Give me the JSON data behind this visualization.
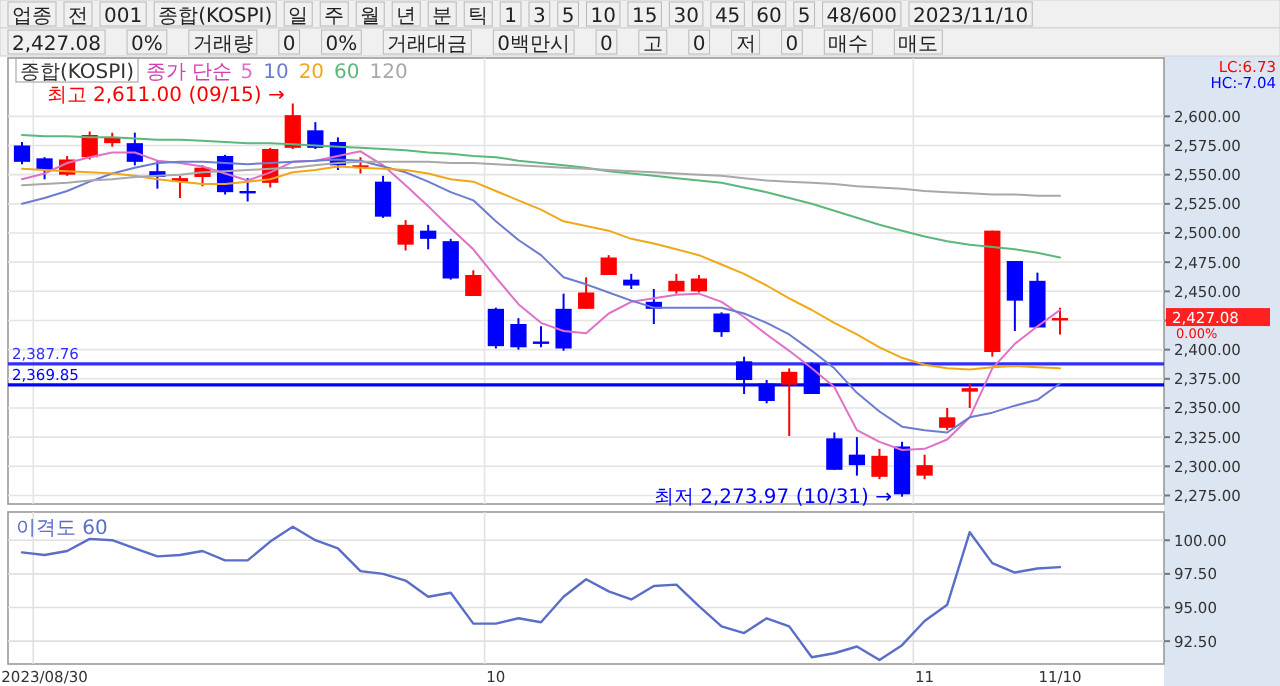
{
  "chart_data": [
    {
      "type": "other",
      "annotations": [
        "업종",
        "전",
        "001",
        "종합(KOSPI)",
        "일",
        "주",
        "월",
        "년",
        "분",
        "틱",
        "1",
        "3",
        "5",
        "10",
        "15",
        "30",
        "45",
        "60",
        "5",
        "48/600",
        "2023/11/10"
      ]
    },
    {
      "type": "other",
      "annotations": [
        "2,427.08",
        "0%",
        "거래량",
        "0",
        "0%",
        "거래대금",
        "0백만시",
        "0",
        "고",
        "0",
        "저",
        "0",
        "매수",
        "매도"
      ]
    },
    {
      "type": "candlestick",
      "title": "종합(KOSPI)",
      "legend_title": "종가 단순",
      "legend": "top left",
      "grid": true,
      "categories": [
        null,
        null,
        null,
        null,
        null,
        null,
        null,
        null,
        null,
        null,
        null,
        null,
        null,
        null,
        null,
        null,
        null,
        null,
        null,
        null,
        null,
        null,
        null,
        null,
        null,
        null,
        null,
        null,
        null,
        null,
        null,
        null,
        null,
        null,
        null,
        null,
        null,
        null,
        null,
        null,
        null,
        null,
        null,
        null,
        null,
        null,
        null
      ],
      "ohlc": [
        [
          2575,
          2578,
          2559,
          2561
        ],
        [
          2564,
          2565,
          2546,
          2554
        ],
        [
          2550,
          2566,
          2549,
          2563
        ],
        [
          2565,
          2587,
          2563,
          2584
        ],
        [
          2577,
          2586,
          2574,
          2582
        ],
        [
          2577,
          2586,
          2558,
          2561
        ],
        [
          2553,
          2562,
          2538,
          2548
        ],
        [
          2544,
          2549,
          2530,
          2547
        ],
        [
          2548,
          2558,
          2540,
          2556
        ],
        [
          2566,
          2567,
          2533,
          2535
        ],
        [
          2536,
          2547,
          2527,
          2535
        ],
        [
          2543,
          2573,
          2539,
          2572
        ],
        [
          2573,
          2611,
          2572,
          2601
        ],
        [
          2588,
          2595,
          2572,
          2573
        ],
        [
          2578,
          2582,
          2554,
          2558
        ],
        [
          2556,
          2565,
          2551,
          2558
        ],
        [
          2544,
          2549,
          2513,
          2514
        ],
        [
          2490,
          2511,
          2485,
          2507
        ],
        [
          2502,
          2507,
          2486,
          2495
        ],
        [
          2493,
          2495,
          2460,
          2461
        ],
        [
          2446,
          2468,
          2446,
          2464
        ],
        [
          2435,
          2436,
          2401,
          2403
        ],
        [
          2422,
          2427,
          2400,
          2402
        ],
        [
          2407,
          2420,
          2402,
          2406
        ],
        [
          2435,
          2448,
          2399,
          2401
        ],
        [
          2435,
          2462,
          2435,
          2449
        ],
        [
          2464,
          2481,
          2464,
          2479
        ],
        [
          2460,
          2465,
          2452,
          2455
        ],
        [
          2441,
          2452,
          2422,
          2435
        ],
        [
          2450,
          2465,
          2448,
          2459
        ],
        [
          2450,
          2464,
          2449,
          2461
        ],
        [
          2431,
          2432,
          2411,
          2415
        ],
        [
          2390,
          2394,
          2362,
          2374
        ],
        [
          2371,
          2374,
          2354,
          2356
        ],
        [
          2370,
          2384,
          2326,
          2381
        ],
        [
          2388,
          2389,
          2362,
          2362
        ],
        [
          2324,
          2329,
          2297,
          2297
        ],
        [
          2310,
          2325,
          2292,
          2301
        ],
        [
          2291,
          2315,
          2289,
          2309
        ],
        [
          2317,
          2321,
          2273.97,
          2276
        ],
        [
          2292,
          2310,
          2289,
          2301
        ],
        [
          2333,
          2350,
          2331,
          2342
        ],
        [
          2364,
          2371,
          2350,
          2367
        ],
        [
          2398,
          2502,
          2394,
          2502
        ],
        [
          2476,
          2476,
          2416,
          2442
        ],
        [
          2459,
          2466,
          2419,
          2419
        ],
        [
          2426,
          2436,
          2413,
          2427.08
        ]
      ],
      "series": [
        {
          "name": "5",
          "type": "line",
          "color": "#e070c8",
          "values": [
            2546,
            2551,
            2560,
            2565,
            2569,
            2569,
            2562,
            2560,
            2557,
            2551,
            2545,
            2552,
            2561,
            2562,
            2566,
            2570,
            2558,
            2541,
            2523,
            2504,
            2486,
            2462,
            2439,
            2423,
            2416,
            2414,
            2431,
            2441,
            2444,
            2447,
            2448,
            2441,
            2428,
            2413,
            2399,
            2384,
            2368,
            2331,
            2321,
            2314,
            2315,
            2323,
            2342,
            2384,
            2405,
            2420,
            2434
          ]
        },
        {
          "name": "10",
          "type": "line",
          "color": "#6c7cd0",
          "values": [
            2525,
            2530,
            2536,
            2544,
            2551,
            2556,
            2560,
            2561,
            2561,
            2560,
            2559,
            2560,
            2561,
            2562,
            2563,
            2562,
            2557,
            2552,
            2544,
            2535,
            2528,
            2510,
            2494,
            2481,
            2462,
            2456,
            2449,
            2442,
            2436,
            2436,
            2436,
            2436,
            2431,
            2423,
            2413,
            2399,
            2384,
            2363,
            2347,
            2334,
            2331,
            2329,
            2342,
            2346,
            2352,
            2357,
            2371
          ]
        },
        {
          "name": "20",
          "type": "line",
          "color": "#f0a818",
          "values": [
            2555,
            2554,
            2553,
            2552,
            2551,
            2549,
            2546,
            2544,
            2542,
            2542,
            2544,
            2546,
            2552,
            2554,
            2557,
            2556,
            2555,
            2554,
            2551,
            2546,
            2544,
            2536,
            2528,
            2520,
            2510,
            2506,
            2502,
            2495,
            2491,
            2486,
            2481,
            2473,
            2465,
            2455,
            2444,
            2434,
            2423,
            2413,
            2402,
            2393,
            2387,
            2384,
            2383,
            2385,
            2386,
            2385,
            2384
          ]
        },
        {
          "name": "60",
          "type": "line",
          "color": "#5cb87a",
          "values": [
            2584,
            2583,
            2583,
            2582,
            2582,
            2581,
            2580,
            2580,
            2579,
            2578,
            2577,
            2577,
            2576,
            2575,
            2574,
            2573,
            2572,
            2571,
            2569,
            2568,
            2566,
            2565,
            2562,
            2560,
            2558,
            2556,
            2553,
            2551,
            2549,
            2547,
            2545,
            2543,
            2539,
            2535,
            2530,
            2525,
            2519,
            2513,
            2507,
            2502,
            2497,
            2493,
            2490,
            2488,
            2486,
            2483,
            2479
          ]
        },
        {
          "name": "120",
          "type": "line",
          "color": "#a8a8a8",
          "values": [
            2541,
            2542,
            2543,
            2545,
            2546,
            2548,
            2549,
            2550,
            2552,
            2553,
            2554,
            2555,
            2556,
            2558,
            2560,
            2561,
            2561,
            2561,
            2561,
            2560,
            2560,
            2559,
            2558,
            2557,
            2556,
            2555,
            2554,
            2553,
            2552,
            2551,
            2550,
            2549,
            2547,
            2545,
            2544,
            2543,
            2542,
            2540,
            2539,
            2538,
            2536,
            2535,
            2534,
            2533,
            2533,
            2532,
            2532
          ]
        }
      ],
      "ylim": [
        2267.7,
        2650
      ],
      "yticks": [
        {
          "value": 2600,
          "label": "2,600.00"
        },
        {
          "value": 2575,
          "label": "2,575.00"
        },
        {
          "value": 2550,
          "label": "2,550.00"
        },
        {
          "value": 2525,
          "label": "2,525.00"
        },
        {
          "value": 2500,
          "label": "2,500.00"
        },
        {
          "value": 2475,
          "label": "2,475.00"
        },
        {
          "value": 2450,
          "label": "2,450.00"
        },
        {
          "value": 2425,
          "label": null
        },
        {
          "value": 2400,
          "label": "2,400.00"
        },
        {
          "value": 2375,
          "label": "2,375.00"
        },
        {
          "value": 2350,
          "label": "2,350.00"
        },
        {
          "value": 2325,
          "label": "2,325.00"
        },
        {
          "value": 2300,
          "label": "2,300.00"
        },
        {
          "value": 2275,
          "label": "2,275.00"
        }
      ],
      "ref_lines": [
        {
          "axis": "y",
          "value": 2387.76,
          "label": "2,387.76",
          "color": "#3030ff"
        },
        {
          "axis": "y",
          "value": 2369.85,
          "label": "2,369.85",
          "color": "#0000ff"
        }
      ],
      "annotations": [
        "최고 2,611.00 (09/15) →",
        "최저 2,273.97 (10/31) →",
        "2,427.08",
        "0.00%",
        "LC:6.73",
        "HC:-7.04"
      ]
    },
    {
      "type": "line",
      "title": "이격도 60",
      "color": "#5a6ec8",
      "grid": true,
      "categories": [
        null,
        "2023/08/30",
        null,
        null,
        null,
        null,
        null,
        null,
        null,
        null,
        null,
        null,
        null,
        null,
        null,
        null,
        null,
        null,
        null,
        null,
        null,
        "10",
        null,
        null,
        null,
        null,
        null,
        null,
        null,
        null,
        null,
        null,
        null,
        null,
        null,
        null,
        null,
        null,
        null,
        null,
        "11",
        null,
        null,
        null,
        null,
        null,
        "11/10"
      ],
      "values": [
        99.1,
        98.9,
        99.2,
        100.1,
        100,
        99.4,
        98.8,
        98.9,
        99.2,
        98.5,
        98.5,
        99.9,
        101,
        100,
        99.4,
        97.7,
        97.5,
        97,
        95.8,
        96.1,
        93.8,
        93.8,
        94.2,
        93.9,
        95.8,
        97.1,
        96.2,
        95.6,
        96.6,
        96.7,
        95.1,
        93.6,
        93.1,
        94.2,
        93.6,
        91.3,
        91.6,
        92.1,
        91.1,
        92.2,
        94,
        95.2,
        100.6,
        98.3,
        97.6,
        97.9,
        98.0
      ],
      "ylim": [
        90.8,
        102.1
      ],
      "yticks": [
        {
          "value": 100,
          "label": "100.00"
        },
        {
          "value": 97.5,
          "label": "97.50"
        },
        {
          "value": 95,
          "label": "95.00"
        },
        {
          "value": 92.5,
          "label": "92.50"
        }
      ]
    }
  ]
}
